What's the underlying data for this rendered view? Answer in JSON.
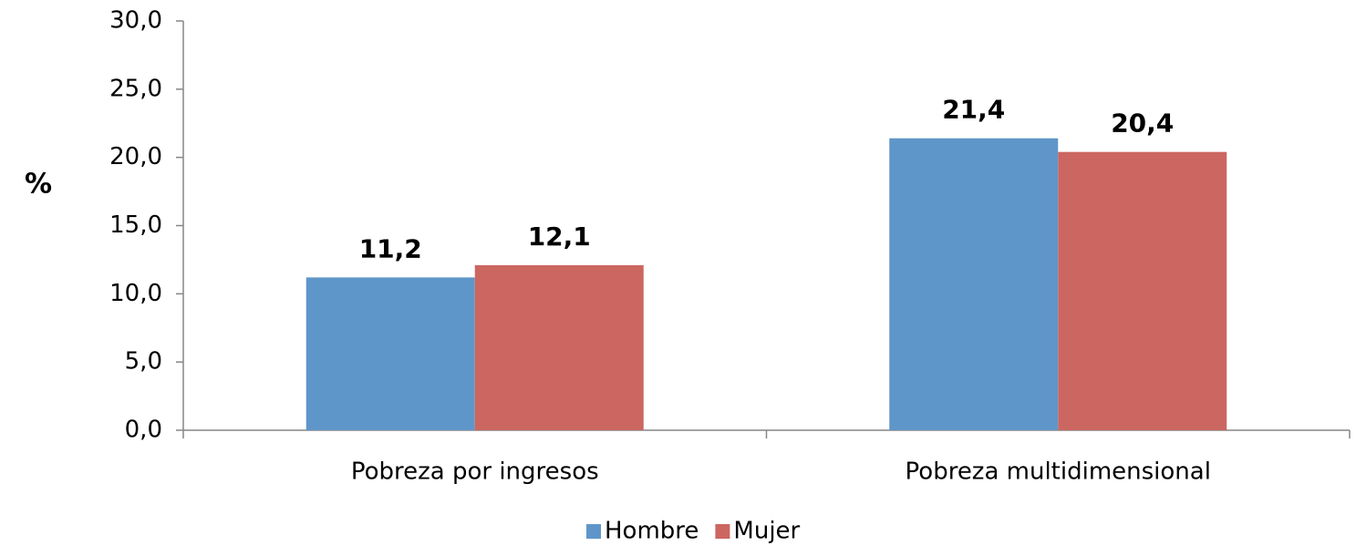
{
  "chart_data": {
    "type": "bar",
    "y_label": "%",
    "categories": [
      "Pobreza por ingresos",
      "Pobreza multidimensional"
    ],
    "series": [
      {
        "name": "Hombre",
        "color": "#5f96c9",
        "values": [
          11.2,
          21.4
        ],
        "value_labels": [
          "11,2",
          "21,4"
        ]
      },
      {
        "name": "Mujer",
        "color": "#cc6660",
        "values": [
          12.1,
          20.4
        ],
        "value_labels": [
          "12,1",
          "20,4"
        ]
      }
    ],
    "ylim": [
      0,
      30
    ],
    "yticks": [
      {
        "value": 0,
        "label": "0,0"
      },
      {
        "value": 5,
        "label": "5,0"
      },
      {
        "value": 10,
        "label": "10,0"
      },
      {
        "value": 15,
        "label": "15,0"
      },
      {
        "value": 20,
        "label": "20,0"
      },
      {
        "value": 25,
        "label": "25,0"
      },
      {
        "value": 30,
        "label": "30,0"
      }
    ],
    "legend": "bottom",
    "grid": false
  }
}
